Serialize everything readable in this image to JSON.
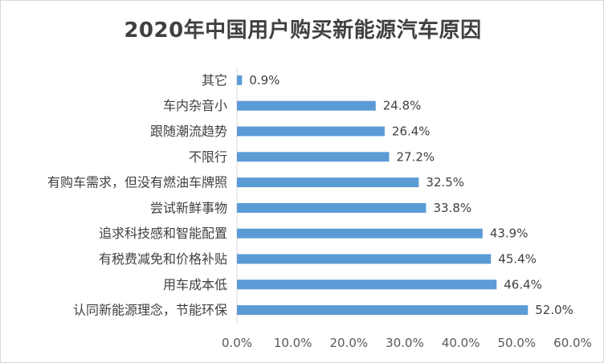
{
  "chart_data": {
    "type": "bar",
    "orientation": "horizontal",
    "title": "2020年中国用户购买新能源汽车原因",
    "categories": [
      "其它",
      "车内杂音小",
      "跟随潮流趋势",
      "不限行",
      "有购车需求，但没有燃油车牌照",
      "尝试新鲜事物",
      "追求科技感和智能配置",
      "有税费减免和价格补贴",
      "用车成本低",
      "认同新能源理念，节能环保"
    ],
    "values": [
      0.9,
      24.8,
      26.4,
      27.2,
      32.5,
      33.8,
      43.9,
      45.4,
      46.4,
      52.0
    ],
    "value_labels": [
      "0.9%",
      "24.8%",
      "26.4%",
      "27.2%",
      "32.5%",
      "33.8%",
      "43.9%",
      "45.4%",
      "46.4%",
      "52.0%"
    ],
    "xlim": [
      0,
      60
    ],
    "x_ticks": [
      "0.0%",
      "10.0%",
      "20.0%",
      "30.0%",
      "40.0%",
      "50.0%",
      "60.0%"
    ],
    "xlabel": "",
    "ylabel": "",
    "grid": false,
    "legend": "none",
    "bar_color": "#5b9bd5"
  }
}
